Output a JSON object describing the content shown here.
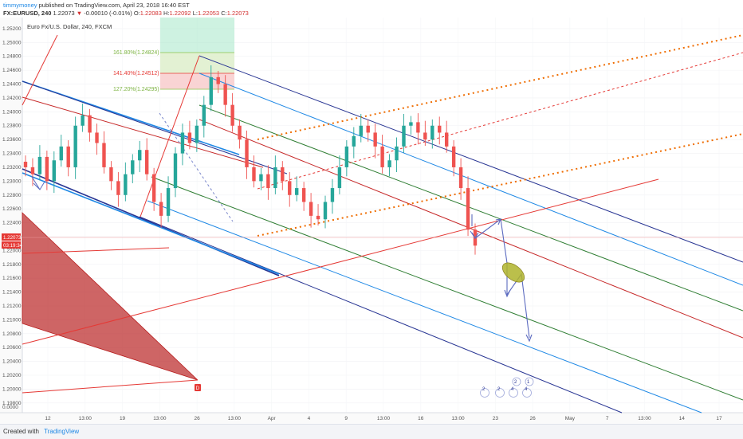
{
  "header": {
    "author": "timmymoney",
    "published": " published on TradingView.com, April 23, 2018 16:40 EST",
    "symbol": "FX:EURUSD",
    "interval": ", 240",
    "last": "1.22073",
    "arrow": "▼",
    "change": "-0.00010 (-0.01%)",
    "o_label": "O:",
    "o_val": "1.22083",
    "h_label": "H:",
    "h_val": "1.22092",
    "l_label": "L:",
    "l_val": "1.22053",
    "c_label": "C:",
    "c_val": "1.22073"
  },
  "chart_data": {
    "type": "candlestick",
    "title": "Euro Fx/U.S. Dollar, 240, FXCM",
    "ylim": [
      1.1966,
      1.2536
    ],
    "y_ticks": [
      "1.25200",
      "1.25000",
      "1.24800",
      "1.24600",
      "1.24400",
      "1.24200",
      "1.24000",
      "1.23800",
      "1.23600",
      "1.23400",
      "1.23200",
      "1.23000",
      "1.22800",
      "1.22600",
      "1.22400",
      "1.22200",
      "1.22000",
      "1.21800",
      "1.21600",
      "1.21400",
      "1.21200",
      "1.21000",
      "1.20800",
      "1.20600",
      "1.20400",
      "1.20200",
      "1.20000",
      "1.19800"
    ],
    "x_ticks": [
      "12",
      "13:00",
      "19",
      "13:00",
      "26",
      "13:00",
      "Apr",
      "4",
      "9",
      "13:00",
      "16",
      "13:00",
      "23",
      "26",
      "May",
      "7",
      "13:00",
      "14",
      "17"
    ],
    "bottom_label": "0.0000",
    "price_label": "1.22073",
    "countdown_label": "03:19:34",
    "fib_levels": [
      {
        "label": "161.80%(1.24824)",
        "value": 1.24824,
        "color": "#8bc34a"
      },
      {
        "label": "141.40%(1.24512)",
        "value": 1.24512,
        "color": "#e53935"
      },
      {
        "label": "127.20%(1.24295)",
        "value": 1.24295,
        "color": "#8bc34a"
      }
    ],
    "close_path": [
      1.232,
      1.231,
      1.2335,
      1.23,
      1.233,
      1.235,
      1.232,
      1.238,
      1.2395,
      1.237,
      1.2355,
      1.232,
      1.23,
      1.228,
      1.231,
      1.233,
      1.2345,
      1.231,
      1.227,
      1.225,
      1.229,
      1.234,
      1.237,
      1.2355,
      1.238,
      1.241,
      1.245,
      1.244,
      1.241,
      1.238,
      1.236,
      1.232,
      1.23,
      1.231,
      1.229,
      1.232,
      1.23,
      1.228,
      1.229,
      1.227,
      1.225,
      1.2245,
      1.227,
      1.229,
      1.232,
      1.235,
      1.2365,
      1.238,
      1.237,
      1.235,
      1.232,
      1.233,
      1.235,
      1.238,
      1.2385,
      1.237,
      1.236,
      1.238,
      1.237,
      1.235,
      1.232,
      1.229,
      1.223,
      1.2207
    ],
    "event_badges": [
      "2",
      "2",
      "4",
      "4",
      "2",
      "1"
    ],
    "marker_badge": "D"
  },
  "footer": {
    "created": "Created with",
    "brand": "TradingView"
  }
}
